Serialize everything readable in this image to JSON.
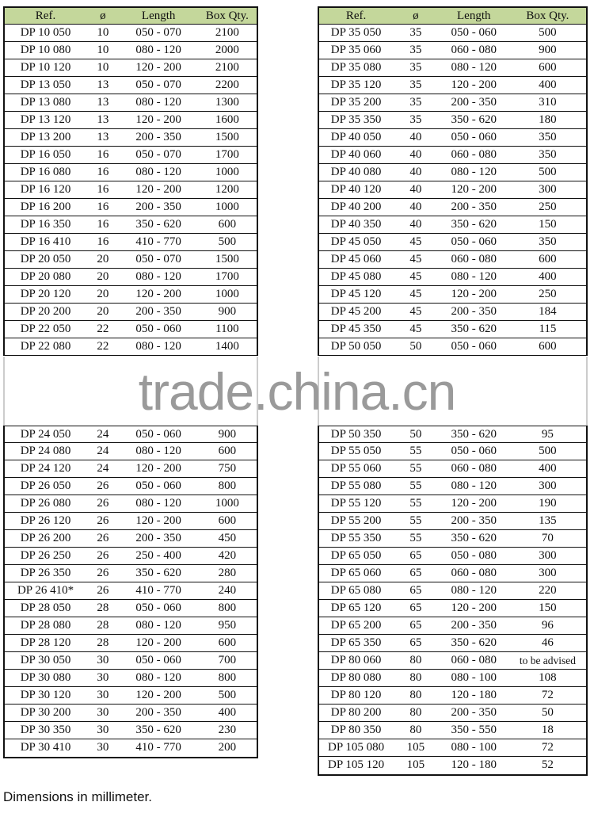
{
  "headers": [
    "Ref.",
    "ø",
    "Length",
    "Box Qty."
  ],
  "header_color": "#c4d79b",
  "left_top": [
    [
      "DP 10 050",
      "10",
      "050 - 070",
      "2100"
    ],
    [
      "DP 10 080",
      "10",
      "080 - 120",
      "2000"
    ],
    [
      "DP 10 120",
      "10",
      "120 - 200",
      "2100"
    ],
    [
      "DP 13 050",
      "13",
      "050 - 070",
      "2200"
    ],
    [
      "DP 13 080",
      "13",
      "080 - 120",
      "1300"
    ],
    [
      "DP 13 120",
      "13",
      "120 - 200",
      "1600"
    ],
    [
      "DP 13 200",
      "13",
      "200 - 350",
      "1500"
    ],
    [
      "DP 16 050",
      "16",
      "050 - 070",
      "1700"
    ],
    [
      "DP 16 080",
      "16",
      "080 - 120",
      "1000"
    ],
    [
      "DP 16 120",
      "16",
      "120 - 200",
      "1200"
    ],
    [
      "DP 16 200",
      "16",
      "200 - 350",
      "1000"
    ],
    [
      "DP 16 350",
      "16",
      "350 - 620",
      "600"
    ],
    [
      "DP 16 410",
      "16",
      "410 - 770",
      "500"
    ],
    [
      "DP 20 050",
      "20",
      "050 - 070",
      "1500"
    ],
    [
      "DP 20 080",
      "20",
      "080 - 120",
      "1700"
    ],
    [
      "DP 20 120",
      "20",
      "120 - 200",
      "1000"
    ],
    [
      "DP 20 200",
      "20",
      "200 - 350",
      "900"
    ],
    [
      "DP 22 050",
      "22",
      "050 - 060",
      "1100"
    ],
    [
      "DP 22 080",
      "22",
      "080 - 120",
      "1400"
    ]
  ],
  "left_bottom": [
    [
      "DP 24 050",
      "24",
      "050 - 060",
      "900"
    ],
    [
      "DP 24 080",
      "24",
      "080 - 120",
      "600"
    ],
    [
      "DP 24 120",
      "24",
      "120 - 200",
      "750"
    ],
    [
      "DP 26 050",
      "26",
      "050 - 060",
      "800"
    ],
    [
      "DP 26 080",
      "26",
      "080 - 120",
      "1000"
    ],
    [
      "DP 26 120",
      "26",
      "120 - 200",
      "600"
    ],
    [
      "DP 26 200",
      "26",
      "200 - 350",
      "450"
    ],
    [
      "DP 26 250",
      "26",
      "250 - 400",
      "420"
    ],
    [
      "DP 26 350",
      "26",
      "350 - 620",
      "280"
    ],
    [
      "DP 26 410*",
      "26",
      "410 - 770",
      "240"
    ],
    [
      "DP 28 050",
      "28",
      "050 - 060",
      "800"
    ],
    [
      "DP 28 080",
      "28",
      "080 - 120",
      "950"
    ],
    [
      "DP 28 120",
      "28",
      "120 - 200",
      "600"
    ],
    [
      "DP 30 050",
      "30",
      "050 - 060",
      "700"
    ],
    [
      "DP 30 080",
      "30",
      "080 - 120",
      "800"
    ],
    [
      "DP 30 120",
      "30",
      "120 - 200",
      "500"
    ],
    [
      "DP 30 200",
      "30",
      "200 - 350",
      "400"
    ],
    [
      "DP 30 350",
      "30",
      "350 - 620",
      "230"
    ],
    [
      "DP 30 410",
      "30",
      "410 - 770",
      "200"
    ]
  ],
  "right_top": [
    [
      "DP 35 050",
      "35",
      "050 - 060",
      "500"
    ],
    [
      "DP 35 060",
      "35",
      "060 - 080",
      "900"
    ],
    [
      "DP 35 080",
      "35",
      "080 - 120",
      "600"
    ],
    [
      "DP 35 120",
      "35",
      "120 - 200",
      "400"
    ],
    [
      "DP 35 200",
      "35",
      "200 - 350",
      "310"
    ],
    [
      "DP 35 350",
      "35",
      "350 - 620",
      "180"
    ],
    [
      "DP 40 050",
      "40",
      "050 - 060",
      "350"
    ],
    [
      "DP 40 060",
      "40",
      "060 - 080",
      "350"
    ],
    [
      "DP 40 080",
      "40",
      "080 - 120",
      "500"
    ],
    [
      "DP 40 120",
      "40",
      "120 - 200",
      "300"
    ],
    [
      "DP 40 200",
      "40",
      "200 - 350",
      "250"
    ],
    [
      "DP 40 350",
      "40",
      "350 - 620",
      "150"
    ],
    [
      "DP 45 050",
      "45",
      "050 - 060",
      "350"
    ],
    [
      "DP 45 060",
      "45",
      "060 - 080",
      "600"
    ],
    [
      "DP 45 080",
      "45",
      "080 - 120",
      "400"
    ],
    [
      "DP 45 120",
      "45",
      "120 - 200",
      "250"
    ],
    [
      "DP 45 200",
      "45",
      "200 - 350",
      "184"
    ],
    [
      "DP 45 350",
      "45",
      "350 - 620",
      "115"
    ],
    [
      "DP 50 050",
      "50",
      "050 - 060",
      "600"
    ]
  ],
  "right_bottom": [
    [
      "DP 50 350",
      "50",
      "350 - 620",
      "95"
    ],
    [
      "DP 55 050",
      "55",
      "050 - 060",
      "500"
    ],
    [
      "DP 55 060",
      "55",
      "060 - 080",
      "400"
    ],
    [
      "DP 55 080",
      "55",
      "080 - 120",
      "300"
    ],
    [
      "DP 55 120",
      "55",
      "120 - 200",
      "190"
    ],
    [
      "DP 55 200",
      "55",
      "200 - 350",
      "135"
    ],
    [
      "DP 55 350",
      "55",
      "350 - 620",
      "70"
    ],
    [
      "DP 65 050",
      "65",
      "050 - 080",
      "300"
    ],
    [
      "DP 65 060",
      "65",
      "060 - 080",
      "300"
    ],
    [
      "DP 65 080",
      "65",
      "080 - 120",
      "220"
    ],
    [
      "DP 65 120",
      "65",
      "120 - 200",
      "150"
    ],
    [
      "DP 65 200",
      "65",
      "200 - 350",
      "96"
    ],
    [
      "DP 65 350",
      "65",
      "350 - 620",
      "46"
    ],
    [
      "DP 80 060",
      "80",
      "060 - 080",
      "to be advised"
    ],
    [
      "DP 80 080",
      "80",
      "080 - 100",
      "108"
    ],
    [
      "DP 80 120",
      "80",
      "120 - 180",
      "72"
    ],
    [
      "DP 80 200",
      "80",
      "200 - 350",
      "50"
    ],
    [
      "DP 80 350",
      "80",
      "350 - 550",
      "18"
    ],
    [
      "DP 105 080",
      "105",
      "080 - 100",
      "72"
    ],
    [
      "DP 105 120",
      "105",
      "120 - 180",
      "52"
    ]
  ],
  "watermark": "trade.china.cn",
  "footer": "Dimensions in millimeter."
}
